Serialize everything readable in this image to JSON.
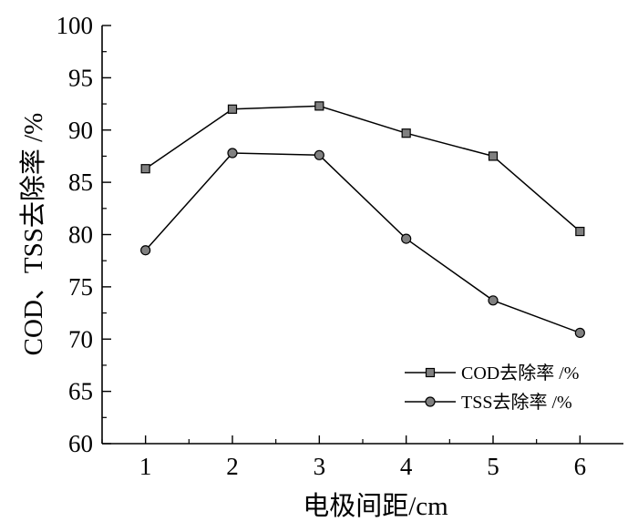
{
  "chart_data": {
    "type": "line",
    "xlabel": "电极间距/cm",
    "ylabel": "COD、TSS去除率 /%",
    "xlim": [
      0.5,
      6.5
    ],
    "ylim": [
      60,
      100
    ],
    "x_ticks": [
      "1",
      "2",
      "3",
      "4",
      "5",
      "6"
    ],
    "y_ticks": [
      "60",
      "65",
      "70",
      "75",
      "80",
      "85",
      "90",
      "95",
      "100"
    ],
    "x": [
      1,
      2,
      3,
      4,
      5,
      6
    ],
    "series": [
      {
        "name": "COD去除率 /%",
        "marker": "square",
        "values": [
          86.3,
          92.0,
          92.3,
          89.7,
          87.5,
          80.3
        ]
      },
      {
        "name": "TSS去除率 /%",
        "marker": "circle",
        "values": [
          78.5,
          87.8,
          87.6,
          79.6,
          73.7,
          70.6
        ]
      }
    ],
    "grid": false,
    "legend_position": "bottom-right",
    "colors": {
      "line": "#000000",
      "marker_fill": "#808080"
    }
  }
}
